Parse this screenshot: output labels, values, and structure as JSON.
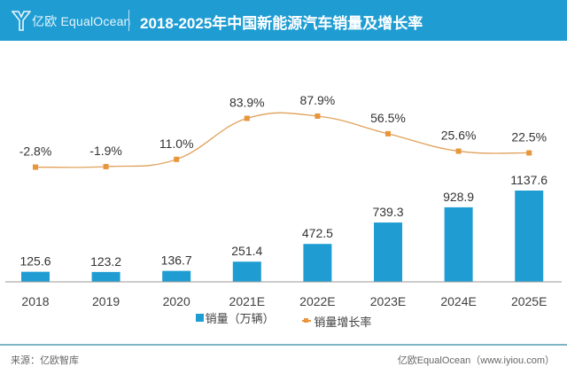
{
  "header": {
    "logo_text": "亿欧 EqualOcean",
    "title": "2018-2025年中国新能源汽车销量及增长率"
  },
  "colors": {
    "header_bg": "#1f9dd3",
    "bar": "#1f9dd3",
    "line": "#e0a15a",
    "marker": "#e8963c"
  },
  "chart_data": {
    "type": "bar+line",
    "title": "2018-2025年中国新能源汽车销量及增长率",
    "categories": [
      "2018",
      "2019",
      "2020",
      "2021E",
      "2022E",
      "2023E",
      "2024E",
      "2025E"
    ],
    "series": [
      {
        "name": "销量（万辆）",
        "type": "bar",
        "values": [
          125.6,
          123.2,
          136.7,
          251.4,
          472.5,
          739.3,
          928.9,
          1137.6
        ],
        "labels": [
          "125.6",
          "123.2",
          "136.7",
          "251.4",
          "472.5",
          "739.3",
          "928.9",
          "1137.6"
        ]
      },
      {
        "name": "销量增长率",
        "type": "line",
        "smooth": true,
        "values": [
          -2.8,
          -1.9,
          11.0,
          83.9,
          87.9,
          56.5,
          25.6,
          22.5
        ],
        "labels": [
          "-2.8%",
          "-1.9%",
          "11.0%",
          "83.9%",
          "87.9%",
          "56.5%",
          "25.6%",
          "22.5%"
        ]
      }
    ],
    "xlabel": "",
    "ylabel": "",
    "grid": false,
    "legend": "bottom-center"
  },
  "legend": {
    "bar_label": "销量（万辆）",
    "line_label": "销量增长率"
  },
  "footer": {
    "source": "来源：亿欧智库",
    "credit": "亿欧EqualOcean（www.iyiou.com）"
  }
}
